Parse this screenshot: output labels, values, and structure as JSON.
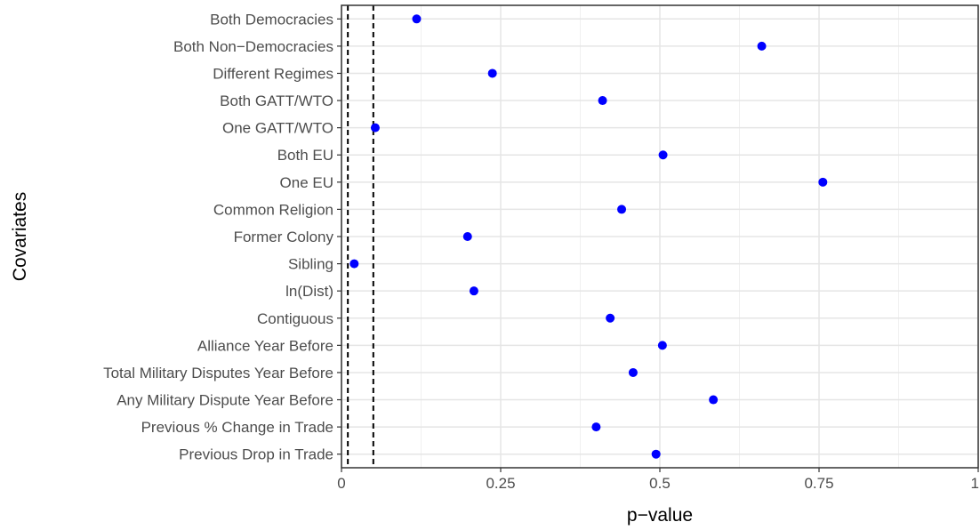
{
  "chart_data": {
    "type": "scatter",
    "xlabel": "p−value",
    "ylabel": "Covariates",
    "xlim": [
      0,
      1
    ],
    "x_ticks": [
      {
        "value": 0,
        "label": "0"
      },
      {
        "value": 0.25,
        "label": "0.25"
      },
      {
        "value": 0.5,
        "label": "0.5"
      },
      {
        "value": 0.75,
        "label": "0.75"
      },
      {
        "value": 1,
        "label": "1"
      }
    ],
    "reference_lines": [
      0.01,
      0.05
    ],
    "grid": true,
    "point_color": "#0000ff",
    "categories": [
      "Both Democracies",
      "Both Non−Democracies",
      "Different Regimes",
      "Both GATT/WTO",
      "One GATT/WTO",
      "Both EU",
      "One EU",
      "Common Religion",
      "Former Colony",
      "Sibling",
      "ln(Dist)",
      "Contiguous",
      "Alliance Year Before",
      "Total Military Disputes Year Before",
      "Any Military Dispute Year Before",
      "Previous % Change in Trade",
      "Previous Drop in Trade"
    ],
    "values": [
      0.118,
      0.66,
      0.237,
      0.41,
      0.053,
      0.505,
      0.756,
      0.44,
      0.198,
      0.02,
      0.208,
      0.422,
      0.504,
      0.458,
      0.584,
      0.4,
      0.494
    ]
  }
}
